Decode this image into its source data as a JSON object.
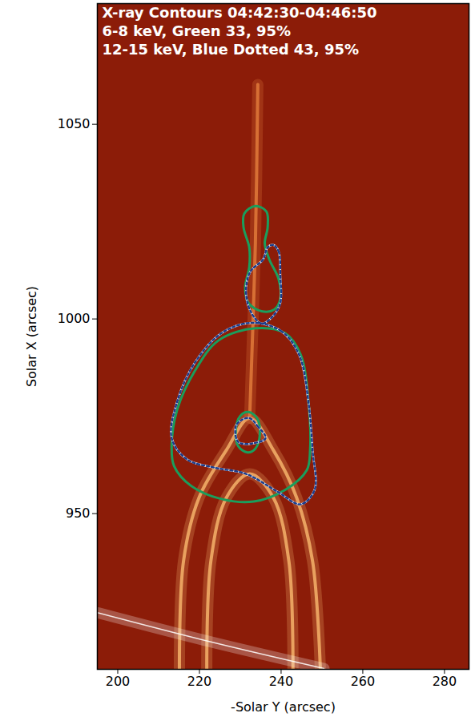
{
  "chart_data": {
    "type": "contour",
    "title": "X-ray Contours 04:42:30-04:46:50",
    "x_label": "-Solar Y (arcsec)",
    "y_label": "Solar X (arcsec)",
    "xlim": [
      195,
      286
    ],
    "ylim": [
      910,
      1081
    ],
    "xticks": [
      200,
      220,
      240,
      260,
      280
    ],
    "yticks": [
      950,
      1000,
      1050
    ],
    "color": "#8c1c08",
    "series": [
      {
        "name": "6-8 keV, Green 33, 95%",
        "color": "#1a9e5c",
        "line_style": "solid",
        "contours": [
          [
            [
              233.7,
              1029.0
            ],
            [
              236.4,
              1027.6
            ],
            [
              236.7,
              1023.5
            ],
            [
              236.0,
              1019.4
            ],
            [
              237.1,
              1015.3
            ],
            [
              239.4,
              1010.2
            ],
            [
              239.8,
              1005.1
            ],
            [
              238.3,
              1002.4
            ],
            [
              235.2,
              1002.0
            ],
            [
              232.0,
              1004.1
            ],
            [
              231.2,
              1008.2
            ],
            [
              232.2,
              1013.3
            ],
            [
              232.2,
              1018.4
            ],
            [
              230.8,
              1023.5
            ],
            [
              231.0,
              1027.1
            ]
          ],
          [
            [
              233.7,
              997.6
            ],
            [
              241.0,
              996.3
            ],
            [
              244.8,
              990.8
            ],
            [
              246.7,
              978.6
            ],
            [
              247.1,
              966.3
            ],
            [
              246.3,
              961.2
            ],
            [
              241.0,
              956.1
            ],
            [
              233.3,
              953.1
            ],
            [
              225.6,
              953.7
            ],
            [
              218.0,
              957.1
            ],
            [
              213.8,
              962.2
            ],
            [
              213.2,
              967.3
            ],
            [
              214.5,
              976.5
            ],
            [
              218.9,
              986.7
            ],
            [
              224.7,
              994.5
            ]
          ],
          [
            [
              232.0,
              976.1
            ],
            [
              234.1,
              974.5
            ],
            [
              234.8,
              970.4
            ],
            [
              233.7,
              966.7
            ],
            [
              231.8,
              965.7
            ],
            [
              229.5,
              967.3
            ],
            [
              228.9,
              971.4
            ],
            [
              230.0,
              975.1
            ]
          ]
        ]
      },
      {
        "name": "12-15 keV, Blue Dotted 43, 95%",
        "color": "#1c3d8c",
        "line_style": "dotted",
        "contours": [
          [
            [
              238.1,
              1019.0
            ],
            [
              239.4,
              1017.3
            ],
            [
              239.8,
              1011.2
            ],
            [
              239.8,
              1004.1
            ],
            [
              237.9,
              1000.6
            ],
            [
              235.2,
              998.8
            ],
            [
              232.5,
              1002.0
            ],
            [
              231.4,
              1007.1
            ],
            [
              232.5,
              1012.2
            ],
            [
              235.6,
              1015.3
            ],
            [
              236.7,
              1018.4
            ]
          ],
          [
            [
              232.9,
              999.0
            ],
            [
              240.0,
              996.9
            ],
            [
              244.4,
              990.8
            ],
            [
              246.7,
              978.6
            ],
            [
              247.7,
              966.3
            ],
            [
              248.2,
              956.1
            ],
            [
              244.8,
              952.4
            ],
            [
              239.0,
              955.7
            ],
            [
              231.4,
              960.2
            ],
            [
              223.7,
              961.8
            ],
            [
              217.0,
              963.9
            ],
            [
              213.2,
              969.4
            ],
            [
              214.5,
              978.6
            ],
            [
              218.9,
              988.8
            ],
            [
              225.6,
              996.5
            ]
          ],
          [
            [
              232.3,
              974.5
            ],
            [
              234.3,
              972.4
            ],
            [
              236.2,
              969.4
            ],
            [
              232.9,
              968.0
            ],
            [
              229.5,
              968.4
            ],
            [
              228.9,
              972.4
            ],
            [
              230.4,
              974.1
            ]
          ]
        ]
      }
    ],
    "features": [
      {
        "type": "line",
        "color": "#f5b26a",
        "values": [
          [
            215.1,
            910.2
          ],
          [
            216.1,
            937.8
          ],
          [
            219.9,
            954.1
          ],
          [
            226.6,
            966.3
          ],
          [
            232.3,
            974.5
          ],
          [
            238.1,
            966.3
          ],
          [
            243.8,
            954.1
          ],
          [
            247.7,
            937.8
          ],
          [
            249.6,
            910.2
          ]
        ]
      },
      {
        "type": "line",
        "color": "#f5b26a",
        "values": [
          [
            221.8,
            910.2
          ],
          [
            222.8,
            937.8
          ],
          [
            226.6,
            954.1
          ],
          [
            232.3,
            960.2
          ],
          [
            238.1,
            954.1
          ],
          [
            241.9,
            937.8
          ],
          [
            242.9,
            910.2
          ]
        ]
      },
      {
        "type": "line",
        "color": "#e07a3a",
        "values": [
          [
            232.3,
            974.5
          ],
          [
            233.7,
            1019.4
          ],
          [
            234.3,
            1060.2
          ]
        ]
      },
      {
        "type": "line",
        "color": "#ffffff",
        "values": [
          [
            195.2,
            924.5
          ],
          [
            221.8,
            917.3
          ],
          [
            250.5,
            910.2
          ]
        ]
      }
    ]
  }
}
